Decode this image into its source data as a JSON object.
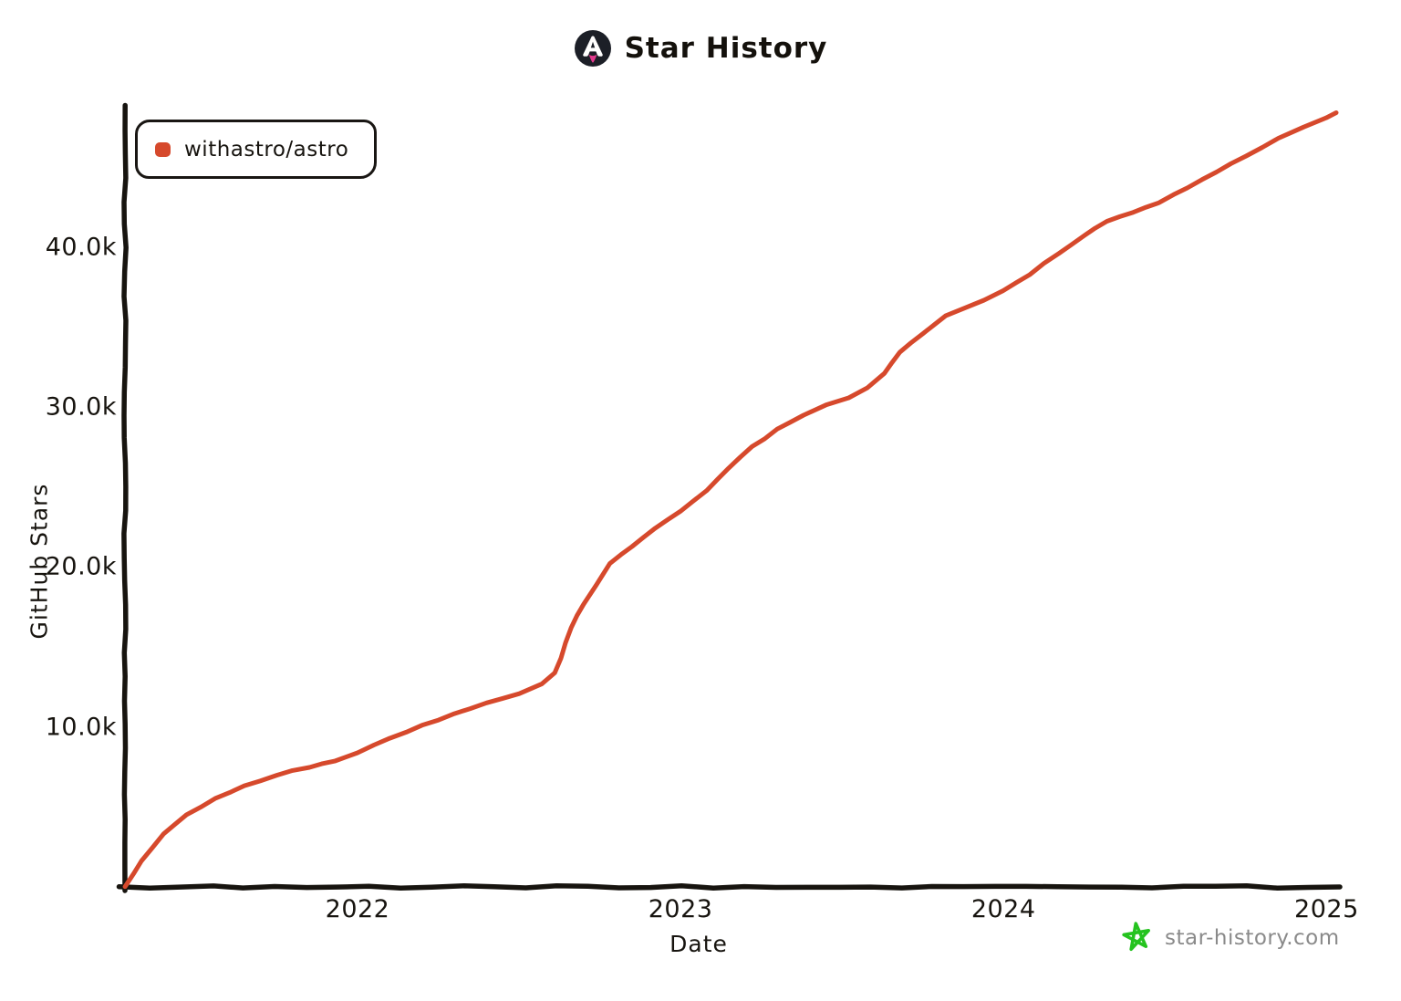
{
  "header": {
    "title": "Star History"
  },
  "legend": {
    "series_label": "withastro/astro"
  },
  "axes": {
    "y_label": "GitHub Stars",
    "x_label": "Date"
  },
  "watermark": {
    "text": "star-history.com"
  },
  "colors": {
    "line": "#d6492c",
    "axis": "#17140f",
    "watermark_star": "#25c31f",
    "watermark_text": "#8a8a8a",
    "logo_bg": "#1c1f27",
    "logo_flame": "#e23a8e"
  },
  "chart_data": {
    "type": "line",
    "title": "Star History",
    "xlabel": "Date",
    "ylabel": "GitHub Stars",
    "grid": false,
    "legend_position": "top-left",
    "x_tick_labels": [
      "2022",
      "2023",
      "2024",
      "2025"
    ],
    "x_tick_values": [
      2022,
      2023,
      2024,
      2025
    ],
    "y_tick_labels": [
      "10.0k",
      "20.0k",
      "30.0k",
      "40.0k"
    ],
    "y_tick_values": [
      10000,
      20000,
      30000,
      40000
    ],
    "x_range": [
      2021.28,
      2025.03
    ],
    "y_range": [
      0,
      48600
    ],
    "x_unit": "decimal_year",
    "y_unit": "stars",
    "series": [
      {
        "name": "withastro/astro",
        "color": "#d6492c",
        "points": [
          [
            2021.28,
            0
          ],
          [
            2021.33,
            1600
          ],
          [
            2021.4,
            3300
          ],
          [
            2021.47,
            4500
          ],
          [
            2021.56,
            5500
          ],
          [
            2021.65,
            6300
          ],
          [
            2021.75,
            7000
          ],
          [
            2021.85,
            7500
          ],
          [
            2021.93,
            7900
          ],
          [
            2022.0,
            8400
          ],
          [
            2022.1,
            9300
          ],
          [
            2022.2,
            10100
          ],
          [
            2022.3,
            10800
          ],
          [
            2022.4,
            11500
          ],
          [
            2022.5,
            12100
          ],
          [
            2022.57,
            12700
          ],
          [
            2022.61,
            13400
          ],
          [
            2022.63,
            14300
          ],
          [
            2022.66,
            16200
          ],
          [
            2022.7,
            17700
          ],
          [
            2022.74,
            18900
          ],
          [
            2022.78,
            20200
          ],
          [
            2022.85,
            21300
          ],
          [
            2022.92,
            22400
          ],
          [
            2023.0,
            23500
          ],
          [
            2023.08,
            24800
          ],
          [
            2023.15,
            26200
          ],
          [
            2023.22,
            27500
          ],
          [
            2023.3,
            28600
          ],
          [
            2023.38,
            29500
          ],
          [
            2023.45,
            30100
          ],
          [
            2023.52,
            30600
          ],
          [
            2023.58,
            31200
          ],
          [
            2023.63,
            32100
          ],
          [
            2023.68,
            33400
          ],
          [
            2023.75,
            34600
          ],
          [
            2023.82,
            35700
          ],
          [
            2023.88,
            36200
          ],
          [
            2023.94,
            36700
          ],
          [
            2024.0,
            37300
          ],
          [
            2024.08,
            38300
          ],
          [
            2024.17,
            39600
          ],
          [
            2024.25,
            40700
          ],
          [
            2024.32,
            41600
          ],
          [
            2024.4,
            42200
          ],
          [
            2024.48,
            42800
          ],
          [
            2024.57,
            43700
          ],
          [
            2024.66,
            44700
          ],
          [
            2024.75,
            45700
          ],
          [
            2024.85,
            46800
          ],
          [
            2024.93,
            47500
          ],
          [
            2025.0,
            48100
          ],
          [
            2025.03,
            48400
          ]
        ]
      }
    ]
  }
}
